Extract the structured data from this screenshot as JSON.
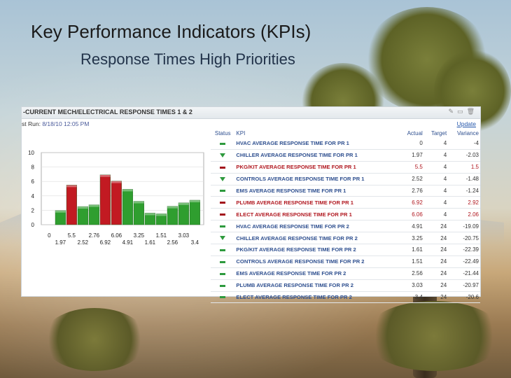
{
  "slide": {
    "title": "Key Performance Indicators (KPIs)",
    "subtitle": "Response Times High Priorities"
  },
  "panel": {
    "title": "-CURRENT MECH/ELECTRICAL RESPONSE TIMES 1 & 2",
    "last_run_label": "st Run:",
    "last_run_value": "8/18/10 12:05 PM",
    "update_label": "Update",
    "icons": [
      "pencil-icon",
      "window-icon",
      "trash-icon"
    ]
  },
  "table": {
    "headers": {
      "status": "Status",
      "kpi": "KPI",
      "actual": "Actual",
      "target": "Target",
      "variance": "Variance"
    },
    "rows": [
      {
        "status": "dash-green",
        "kpi": "HVAC AVERAGE RESPONSE TIME FOR PR 1",
        "actual": "0",
        "target": "4",
        "variance": "-4"
      },
      {
        "status": "arrow-down-green",
        "kpi": "CHILLER AVERAGE RESPONSE TIME FOR PR 1",
        "actual": "1.97",
        "target": "4",
        "variance": "-2.03"
      },
      {
        "status": "dash-red",
        "kpi": "PKG/KIT AVERAGE RESPONSE TIME FOR PR 1",
        "actual": "5.5",
        "target": "4",
        "variance": "1.5"
      },
      {
        "status": "arrow-down-green",
        "kpi": "CONTROLS AVERAGE RESPONSE TIME FOR PR 1",
        "actual": "2.52",
        "target": "4",
        "variance": "-1.48"
      },
      {
        "status": "dash-green",
        "kpi": "EMS AVERAGE RESPONSE TIME FOR PR 1",
        "actual": "2.76",
        "target": "4",
        "variance": "-1.24"
      },
      {
        "status": "dash-red",
        "kpi": "PLUMB AVERAGE RESPONSE TIME FOR PR 1",
        "actual": "6.92",
        "target": "4",
        "variance": "2.92"
      },
      {
        "status": "dash-red",
        "kpi": "ELECT AVERAGE RESPONSE TIME FOR PR 1",
        "actual": "6.06",
        "target": "4",
        "variance": "2.06"
      },
      {
        "status": "dash-green",
        "kpi": "HVAC AVERAGE RESPONSE TIME FOR PR 2",
        "actual": "4.91",
        "target": "24",
        "variance": "-19.09"
      },
      {
        "status": "arrow-down-green",
        "kpi": "CHILLER AVERAGE RESPONSE TIME FOR PR 2",
        "actual": "3.25",
        "target": "24",
        "variance": "-20.75"
      },
      {
        "status": "dash-green",
        "kpi": "PKG/KIT AVERAGE RESPONSE TIME FOR PR 2",
        "actual": "1.61",
        "target": "24",
        "variance": "-22.39"
      },
      {
        "status": "dash-green",
        "kpi": "CONTROLS AVERAGE RESPONSE TIME FOR PR 2",
        "actual": "1.51",
        "target": "24",
        "variance": "-22.49"
      },
      {
        "status": "dash-green",
        "kpi": "EMS AVERAGE RESPONSE TIME FOR PR 2",
        "actual": "2.56",
        "target": "24",
        "variance": "-21.44"
      },
      {
        "status": "dash-green",
        "kpi": "PLUMB AVERAGE RESPONSE TIME FOR PR 2",
        "actual": "3.03",
        "target": "24",
        "variance": "-20.97"
      },
      {
        "status": "dash-green",
        "kpi": "ELECT AVERAGE RESPONSE TIME FOR PR 2",
        "actual": "3.4",
        "target": "24",
        "variance": "-20.6"
      }
    ]
  },
  "chart_data": {
    "type": "bar",
    "title": "",
    "xlabel": "",
    "ylabel": "",
    "ylim": [
      0,
      10
    ],
    "yticks": [
      0,
      2,
      4,
      6,
      8,
      10
    ],
    "categories_row1": [
      "0",
      "5.5",
      "2.76",
      "6.06",
      "3.25",
      "1.51",
      "3.03"
    ],
    "categories_row2": [
      "1.97",
      "2.52",
      "6.92",
      "4.91",
      "1.61",
      "2.56",
      "3.4"
    ],
    "values": [
      0,
      1.97,
      5.5,
      2.52,
      2.76,
      6.92,
      6.06,
      4.91,
      3.25,
      1.61,
      1.51,
      2.56,
      3.03,
      3.4
    ],
    "bar_status": [
      "green",
      "green",
      "red",
      "green",
      "green",
      "red",
      "red",
      "green",
      "green",
      "green",
      "green",
      "green",
      "green",
      "green"
    ],
    "colors": {
      "green": "#2f9e2f",
      "red": "#c21a22"
    },
    "grid": true
  }
}
